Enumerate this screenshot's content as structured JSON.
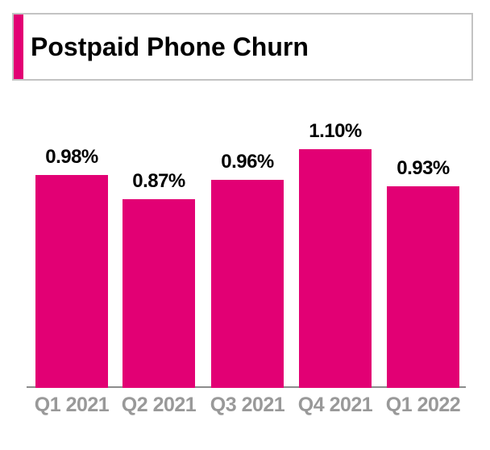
{
  "header": {
    "title": "Postpaid Phone Churn"
  },
  "colors": {
    "bar": "#E20074",
    "accent_bar": "#E20074",
    "axis_line": "#8C8C8C",
    "category_label": "#999999",
    "value_label": "#000000",
    "header_border": "#C3C3C3"
  },
  "chart_data": {
    "type": "bar",
    "title": "Postpaid Phone Churn",
    "categories": [
      "Q1 2021",
      "Q2 2021",
      "Q3 2021",
      "Q4 2021",
      "Q1 2022"
    ],
    "values": [
      0.98,
      0.87,
      0.96,
      1.1,
      0.93
    ],
    "value_labels": [
      "0.98%",
      "0.87%",
      "0.96%",
      "1.10%",
      "0.93%"
    ],
    "unit": "percent",
    "xlabel": "",
    "ylabel": "",
    "ylim": [
      0,
      1.2
    ],
    "grid": false,
    "legend": false,
    "bar_color": "#E20074"
  }
}
